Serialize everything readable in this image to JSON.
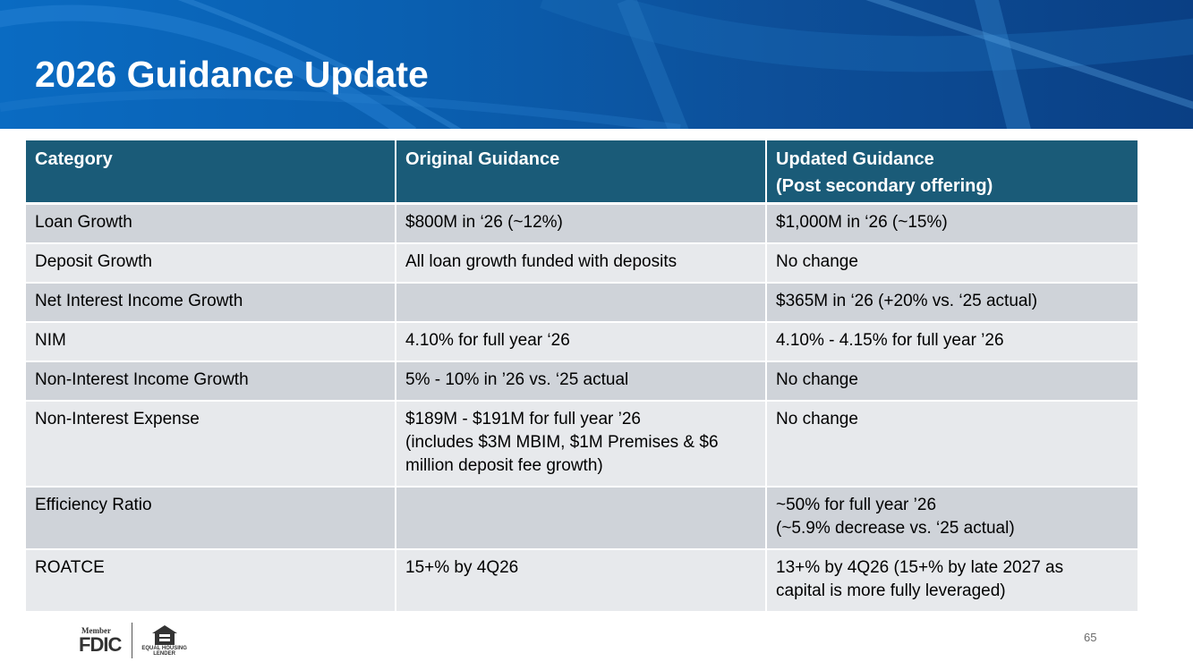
{
  "slide": {
    "title": "2026 Guidance Update",
    "page_number": "65"
  },
  "table": {
    "headers": {
      "category": "Category",
      "original": "Original Guidance",
      "updated_line1": "Updated Guidance",
      "updated_line2": "(Post secondary offering)"
    },
    "rows": [
      {
        "category": "Loan Growth",
        "original": [
          "$800M in ‘26 (~12%)"
        ],
        "updated": [
          "$1,000M in ‘26 (~15%)"
        ]
      },
      {
        "category": "Deposit Growth",
        "original": [
          "All loan growth funded with deposits"
        ],
        "updated": [
          "No change"
        ]
      },
      {
        "category": "Net Interest Income Growth",
        "original": [
          ""
        ],
        "updated": [
          "$365M in ‘26 (+20% vs. ‘25 actual)"
        ]
      },
      {
        "category": "NIM",
        "original": [
          "4.10% for full year ‘26"
        ],
        "updated": [
          "4.10% - 4.15% for full year ’26"
        ]
      },
      {
        "category": "Non-Interest Income Growth",
        "original": [
          "5% - 10% in ’26 vs. ‘25 actual"
        ],
        "updated": [
          "No change"
        ]
      },
      {
        "category": "Non-Interest Expense",
        "original": [
          "$189M - $191M for full year ’26",
          "(includes $3M MBIM, $1M Premises & $6",
          "million deposit fee growth)"
        ],
        "updated": [
          "No change"
        ]
      },
      {
        "category": "Efficiency Ratio",
        "original": [
          ""
        ],
        "updated": [
          "~50% for full year ’26",
          "(~5.9% decrease vs. ‘25 actual)"
        ]
      },
      {
        "category": "ROATCE",
        "original": [
          "15+% by 4Q26"
        ],
        "updated": [
          "13+% by 4Q26 (15+% by late 2027 as",
          "capital is more fully leveraged)"
        ]
      }
    ]
  },
  "footer": {
    "fdic_member": "Member",
    "fdic_word": "FDIC",
    "ehl_line1": "EQUAL HOUSING",
    "ehl_line2": "LENDER"
  },
  "colors": {
    "banner": "#0a5fb0",
    "header_row": "#1a5b78",
    "row_dark": "#cfd3d9",
    "row_light": "#e7e9ec"
  }
}
